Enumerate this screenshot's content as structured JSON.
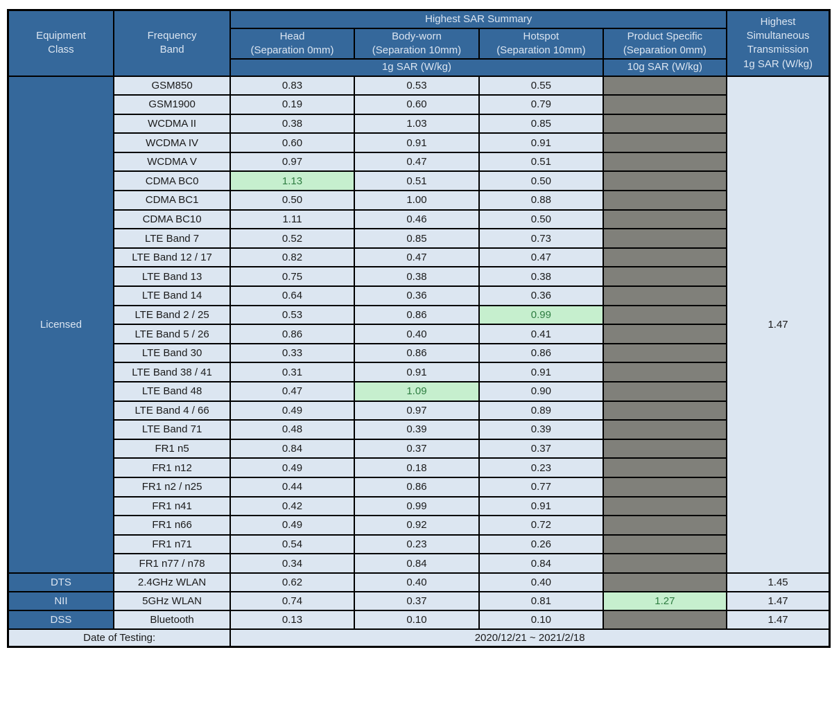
{
  "colors": {
    "header_bg": "#35689B",
    "header_text": "#DBE5F1",
    "cell_bg": "#DCE6F1",
    "gray_bg": "#80807A",
    "green_bg": "#C6EFCE",
    "green_text": "#2E7D41",
    "border": "#000000"
  },
  "header": {
    "sar_summary": "Highest SAR Summary",
    "equipment_class": "Equipment\nClass",
    "frequency_band": "Frequency\nBand",
    "exposure_columns": [
      "Head\n(Separation 0mm)",
      "Body-worn\n(Separation 10mm)",
      "Hotspot\n(Separation 10mm)",
      "Product Specific\n(Separation 0mm)"
    ],
    "sar_1g": "1g SAR (W/kg)",
    "sar_10g": "10g SAR (W/kg)",
    "simultaneous": "Highest\nSimultaneous\nTransmission\n1g SAR (W/kg)"
  },
  "sections": [
    {
      "name": "Licensed",
      "simultaneous": "1.47",
      "rows": [
        {
          "band": "GSM850",
          "head": "0.83",
          "body": "0.53",
          "hotspot": "0.55"
        },
        {
          "band": "GSM1900",
          "head": "0.19",
          "body": "0.60",
          "hotspot": "0.79"
        },
        {
          "band": "WCDMA II",
          "head": "0.38",
          "body": "1.03",
          "hotspot": "0.85"
        },
        {
          "band": "WCDMA IV",
          "head": "0.60",
          "body": "0.91",
          "hotspot": "0.91"
        },
        {
          "band": "WCDMA V",
          "head": "0.97",
          "body": "0.47",
          "hotspot": "0.51"
        },
        {
          "band": "CDMA BC0",
          "head": "1.13",
          "body": "0.51",
          "hotspot": "0.50",
          "highlight": "head"
        },
        {
          "band": "CDMA BC1",
          "head": "0.50",
          "body": "1.00",
          "hotspot": "0.88"
        },
        {
          "band": "CDMA BC10",
          "head": "1.11",
          "body": "0.46",
          "hotspot": "0.50"
        },
        {
          "band": "LTE Band 7",
          "head": "0.52",
          "body": "0.85",
          "hotspot": "0.73"
        },
        {
          "band": "LTE Band 12 / 17",
          "head": "0.82",
          "body": "0.47",
          "hotspot": "0.47"
        },
        {
          "band": "LTE Band 13",
          "head": "0.75",
          "body": "0.38",
          "hotspot": "0.38"
        },
        {
          "band": "LTE Band 14",
          "head": "0.64",
          "body": "0.36",
          "hotspot": "0.36"
        },
        {
          "band": "LTE Band 2 / 25",
          "head": "0.53",
          "body": "0.86",
          "hotspot": "0.99",
          "highlight": "hotspot"
        },
        {
          "band": "LTE Band 5 / 26",
          "head": "0.86",
          "body": "0.40",
          "hotspot": "0.41"
        },
        {
          "band": "LTE Band 30",
          "head": "0.33",
          "body": "0.86",
          "hotspot": "0.86"
        },
        {
          "band": "LTE Band 38 / 41",
          "head": "0.31",
          "body": "0.91",
          "hotspot": "0.91"
        },
        {
          "band": "LTE Band 48",
          "head": "0.47",
          "body": "1.09",
          "hotspot": "0.90",
          "highlight": "body"
        },
        {
          "band": "LTE Band 4 / 66",
          "head": "0.49",
          "body": "0.97",
          "hotspot": "0.89"
        },
        {
          "band": "LTE Band 71",
          "head": "0.48",
          "body": "0.39",
          "hotspot": "0.39"
        },
        {
          "band": "FR1 n5",
          "head": "0.84",
          "body": "0.37",
          "hotspot": "0.37"
        },
        {
          "band": "FR1 n12",
          "head": "0.49",
          "body": "0.18",
          "hotspot": "0.23"
        },
        {
          "band": "FR1 n2 / n25",
          "head": "0.44",
          "body": "0.86",
          "hotspot": "0.77"
        },
        {
          "band": "FR1 n41",
          "head": "0.42",
          "body": "0.99",
          "hotspot": "0.91"
        },
        {
          "band": "FR1 n66",
          "head": "0.49",
          "body": "0.92",
          "hotspot": "0.72"
        },
        {
          "band": "FR1 n71",
          "head": "0.54",
          "body": "0.23",
          "hotspot": "0.26"
        },
        {
          "band": "FR1 n77 / n78",
          "head": "0.34",
          "body": "0.84",
          "hotspot": "0.84"
        }
      ]
    },
    {
      "name": "DTS",
      "simultaneous": "1.45",
      "rows": [
        {
          "band": "2.4GHz WLAN",
          "head": "0.62",
          "body": "0.40",
          "hotspot": "0.40"
        }
      ]
    },
    {
      "name": "NII",
      "simultaneous": "1.47",
      "rows": [
        {
          "band": "5GHz WLAN",
          "head": "0.74",
          "body": "0.37",
          "hotspot": "0.81",
          "product": "1.27",
          "highlight": "product"
        }
      ]
    },
    {
      "name": "DSS",
      "simultaneous": "1.47",
      "rows": [
        {
          "band": "Bluetooth",
          "head": "0.13",
          "body": "0.10",
          "hotspot": "0.10"
        }
      ]
    }
  ],
  "footer": {
    "label": "Date of Testing:",
    "value": "2020/12/21 ~ 2021/2/18"
  }
}
